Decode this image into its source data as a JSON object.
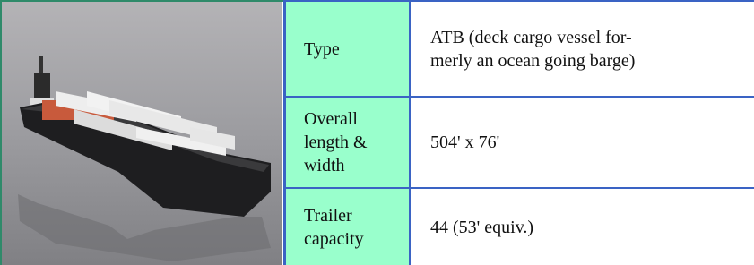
{
  "table": {
    "rows": [
      {
        "label": "Type",
        "value_lines": [
          "ATB (deck cargo vessel for-",
          "merly an ocean going barge)"
        ]
      },
      {
        "label": "Overall length & width",
        "value_lines": [
          "504' x 76'"
        ]
      },
      {
        "label": "Trailer capacity",
        "value_lines": [
          "44 (53' equiv.)"
        ]
      }
    ]
  }
}
